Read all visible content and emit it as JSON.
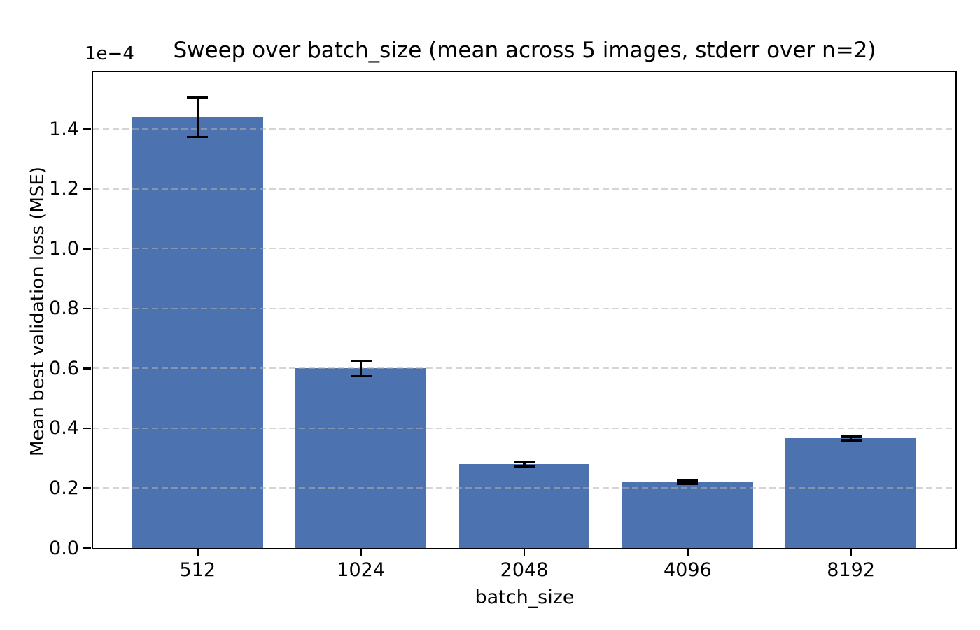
{
  "chart_data": {
    "type": "bar",
    "title": "Sweep over batch_size (mean across 5 images, stderr over n=2)",
    "offset_text": "1e−4",
    "xlabel": "batch_size",
    "ylabel": "Mean best validation loss (MSE)",
    "categories": [
      "512",
      "1024",
      "2048",
      "4096",
      "8192"
    ],
    "values": [
      1.44,
      0.6,
      0.28,
      0.22,
      0.366
    ],
    "errors": [
      0.07,
      0.03,
      0.012,
      0.009,
      0.01
    ],
    "values_absolute": [
      0.000144,
      6e-05,
      2.8e-05,
      2.2e-05,
      3.66e-05
    ],
    "errors_absolute": [
      7e-06,
      3e-06,
      1.2e-06,
      9e-07,
      1e-06
    ],
    "y_scale_factor": "1e-4",
    "ylim": [
      0,
      1.59
    ],
    "yticks": [
      0.0,
      0.2,
      0.4,
      0.6,
      0.8,
      1.0,
      1.2,
      1.4
    ],
    "xlim_units": [
      -0.64,
      4.64
    ],
    "bar_width_units": 0.8,
    "grid": "horizontal dashed gridlines drawn over bars",
    "legend": null,
    "error_bar_style": "black vertical line with horizontal caps",
    "colors": {
      "bar": "#4c72b0",
      "error_bar": "#000000",
      "grid": "#b2b2b2",
      "spine": "#000000",
      "text": "#000000",
      "background": "#ffffff"
    }
  }
}
